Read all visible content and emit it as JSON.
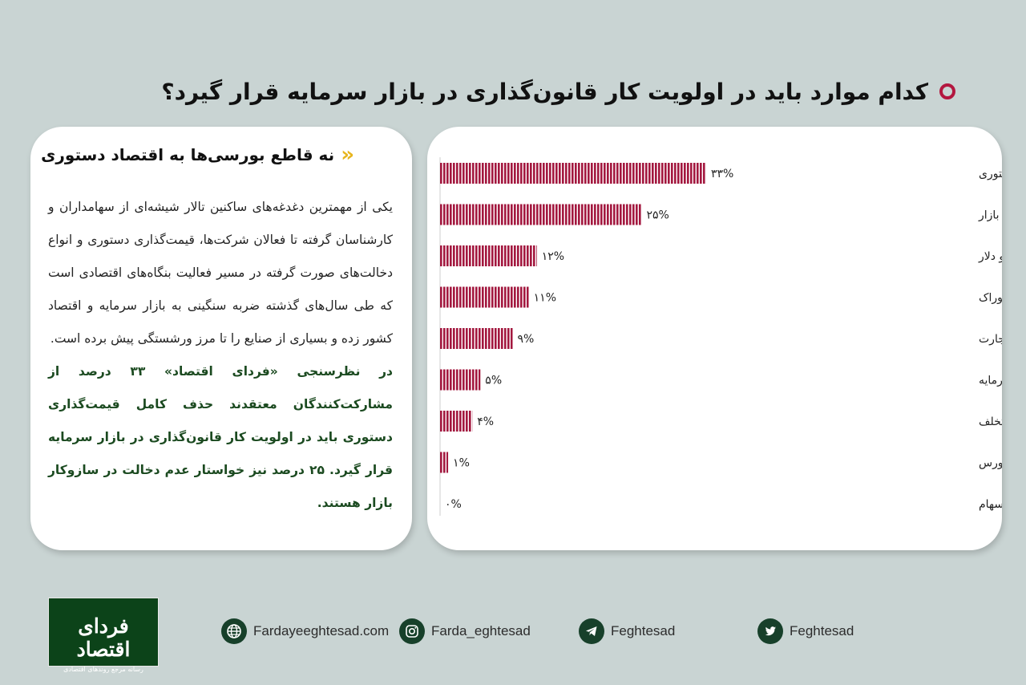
{
  "title": "کدام موارد باید در اولویت کار قانون‌گذاری در بازار سرمایه قرار گیرد؟",
  "left_card": {
    "heading": "نه قاطع بورسی‌ها به اقتصاد دستوری",
    "paragraph": "یکی از مهمترین دغدغه‌های ساکنین تالار شیشه‌ای از سهامداران و کارشناسان گرفته تا فعالان شرکت‌ها، قیمت‌گذاری دستوری و انواع دخالت‌های صورت گرفته در مسیر فعالیت بنگاه‌های اقتصادی است که طی سال‌های گذشته ضربه سنگینی به بازار سرمایه و اقتصاد کشور زده و بسیاری از صنایع را تا مرز ورشستگی پیش برده است.",
    "highlight": "در نظرسنجی «فردای اقتصاد» ۳۳ درصد از مشارکت‌کنندگان معتقدند حذف کامل قیمت‌گذاری دستوری باید در اولویت کار قانون‌گذاری در بازار سرمایه قرار گیرد. ۲۵ درصد نیز خواستار عدم دخالت در سازوکار بازار هستند."
  },
  "chart_data": {
    "type": "bar",
    "orientation": "horizontal",
    "categories": [
      "حذف کامل قیمت گذاری دستوری",
      "عدم دخالت در سازوکار بازار",
      "اعمال مالیات بر بازارهای رقیب مانند مسکن و دلار",
      "کاهش مالیات و نرخ خوراک",
      "اصلاح قانون تجارت",
      "تصویب قوانینی برای تزریق نقدینگی به بازار سرمایه",
      "برخورد با حقوقی‌های متخلف",
      "اجبار دولت به فروش سهام در بورس",
      "تصویب قوانین برای مبارزه با فروشندگان سهام"
    ],
    "values": [
      33,
      25,
      12,
      11,
      9,
      5,
      4,
      1,
      0
    ],
    "value_labels": [
      "۳۳%",
      "۲۵%",
      "۱۲%",
      "۱۱%",
      "۹%",
      "۵%",
      "۴%",
      "۱%",
      "۰%"
    ],
    "bar_color": "#a3183f",
    "xlim": [
      0,
      33
    ]
  },
  "footer": {
    "logo_text": "فردای اقتصاد",
    "logo_subtitle": "رسانه مرجع روندهای اقتصادی",
    "social": [
      {
        "icon": "globe-icon",
        "label": "Fardayeeghtesad.com"
      },
      {
        "icon": "instagram-icon",
        "label": "Farda_eghtesad"
      },
      {
        "icon": "telegram-icon",
        "label": "Feghtesad"
      },
      {
        "icon": "twitter-icon",
        "label": "Feghtesad"
      }
    ]
  },
  "colors": {
    "background": "#c9d4d3",
    "accent": "#b3173f",
    "highlight_text": "#1b4a20",
    "chevron": "#e7b51e",
    "logo_bg": "#0c4319"
  }
}
